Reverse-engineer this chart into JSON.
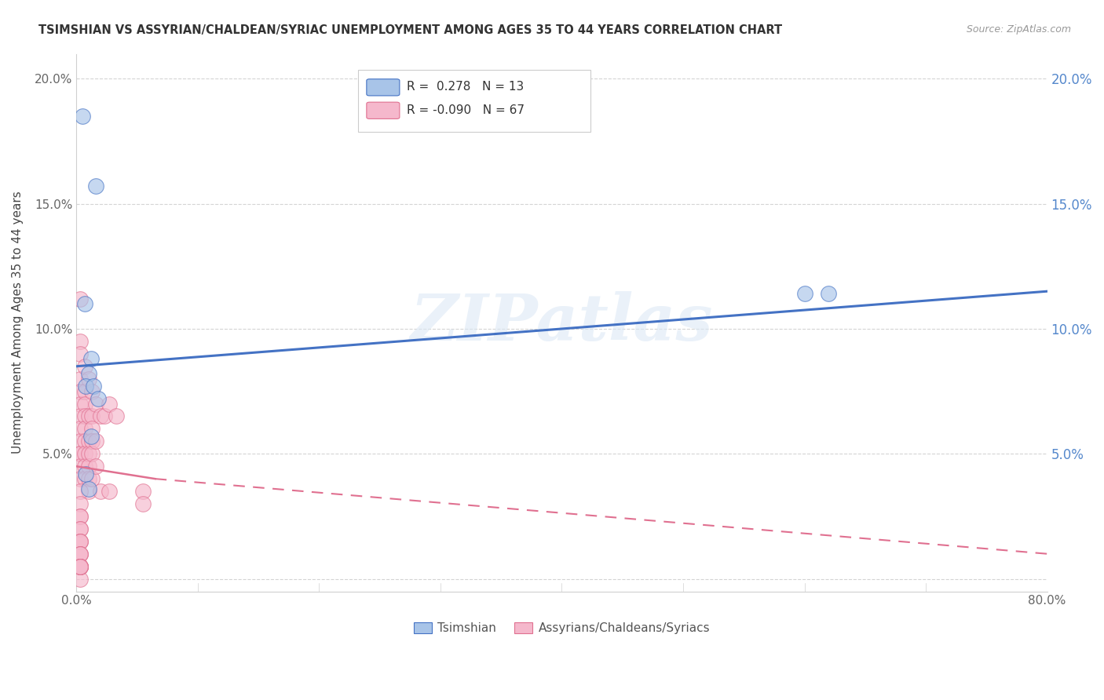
{
  "title": "TSIMSHIAN VS ASSYRIAN/CHALDEAN/SYRIAC UNEMPLOYMENT AMONG AGES 35 TO 44 YEARS CORRELATION CHART",
  "source": "Source: ZipAtlas.com",
  "ylabel": "Unemployment Among Ages 35 to 44 years",
  "xlim": [
    0.0,
    0.8
  ],
  "ylim": [
    -0.005,
    0.21
  ],
  "yticks": [
    0.0,
    0.05,
    0.1,
    0.15,
    0.2
  ],
  "ytick_labels_left": [
    "",
    "5.0%",
    "10.0%",
    "15.0%",
    "20.0%"
  ],
  "ytick_labels_right": [
    "",
    "5.0%",
    "10.0%",
    "15.0%",
    "20.0%"
  ],
  "xticks": [
    0.0,
    0.1,
    0.2,
    0.3,
    0.4,
    0.5,
    0.6,
    0.7,
    0.8
  ],
  "xtick_labels": [
    "0.0%",
    "",
    "",
    "",
    "",
    "",
    "",
    "",
    "80.0%"
  ],
  "color_tsimshian": "#a8c4e8",
  "color_assyrian": "#f5b8cc",
  "color_tsimshian_line": "#4472c4",
  "color_assyrian_line": "#e07090",
  "watermark": "ZIPatlas",
  "background_color": "#ffffff",
  "grid_color": "#d0d0d0",
  "right_axis_color": "#5588cc",
  "tsimshian_x": [
    0.005,
    0.016,
    0.007,
    0.012,
    0.01,
    0.008,
    0.014,
    0.018,
    0.012,
    0.008,
    0.6,
    0.62,
    0.01
  ],
  "tsimshian_y": [
    0.185,
    0.157,
    0.11,
    0.088,
    0.082,
    0.077,
    0.077,
    0.072,
    0.057,
    0.042,
    0.114,
    0.114,
    0.036
  ],
  "assyrian_x": [
    0.003,
    0.003,
    0.003,
    0.003,
    0.003,
    0.003,
    0.003,
    0.003,
    0.003,
    0.003,
    0.003,
    0.003,
    0.003,
    0.007,
    0.007,
    0.007,
    0.007,
    0.007,
    0.007,
    0.007,
    0.007,
    0.007,
    0.01,
    0.01,
    0.01,
    0.01,
    0.01,
    0.01,
    0.01,
    0.013,
    0.013,
    0.013,
    0.013,
    0.013,
    0.013,
    0.016,
    0.016,
    0.016,
    0.02,
    0.02,
    0.023,
    0.027,
    0.027,
    0.033,
    0.003,
    0.003,
    0.003,
    0.003,
    0.003,
    0.003,
    0.003,
    0.003,
    0.003,
    0.003,
    0.003,
    0.003,
    0.003,
    0.003,
    0.003,
    0.003,
    0.055,
    0.055,
    0.003,
    0.003,
    0.003,
    0.003,
    0.003
  ],
  "assyrian_y": [
    0.112,
    0.095,
    0.09,
    0.08,
    0.075,
    0.07,
    0.065,
    0.06,
    0.055,
    0.05,
    0.05,
    0.045,
    0.04,
    0.085,
    0.075,
    0.07,
    0.065,
    0.06,
    0.055,
    0.05,
    0.045,
    0.04,
    0.08,
    0.065,
    0.055,
    0.05,
    0.045,
    0.04,
    0.035,
    0.075,
    0.065,
    0.06,
    0.055,
    0.05,
    0.04,
    0.07,
    0.055,
    0.045,
    0.065,
    0.035,
    0.065,
    0.07,
    0.035,
    0.065,
    0.035,
    0.03,
    0.025,
    0.025,
    0.02,
    0.02,
    0.015,
    0.015,
    0.015,
    0.01,
    0.01,
    0.01,
    0.005,
    0.005,
    0.005,
    0.0,
    0.035,
    0.03,
    0.005,
    0.005,
    0.005,
    0.005,
    0.005
  ],
  "tsim_line_x0": 0.0,
  "tsim_line_x1": 0.8,
  "tsim_line_y0": 0.085,
  "tsim_line_y1": 0.115,
  "ass_line_solid_x0": 0.0,
  "ass_line_solid_x1": 0.065,
  "ass_line_solid_y0": 0.045,
  "ass_line_solid_y1": 0.04,
  "ass_line_dash_x0": 0.065,
  "ass_line_dash_x1": 0.8,
  "ass_line_dash_y0": 0.04,
  "ass_line_dash_y1": 0.01
}
